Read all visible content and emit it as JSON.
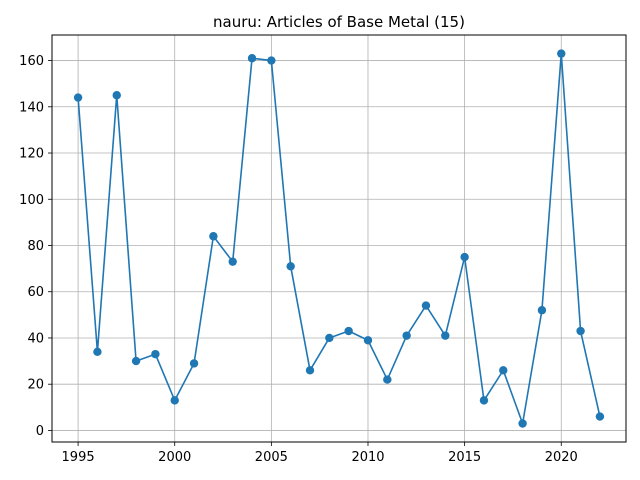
{
  "chart_data": {
    "type": "line",
    "title": "nauru: Articles of Base Metal (15)",
    "xlabel": "",
    "ylabel": "",
    "x": [
      1995,
      1996,
      1997,
      1998,
      1999,
      2000,
      2001,
      2002,
      2003,
      2004,
      2005,
      2006,
      2007,
      2008,
      2009,
      2010,
      2011,
      2012,
      2013,
      2014,
      2015,
      2016,
      2017,
      2018,
      2019,
      2020,
      2021,
      2022
    ],
    "series": [
      {
        "values": [
          144,
          34,
          145,
          30,
          33,
          13,
          29,
          84,
          73,
          161,
          160,
          71,
          26,
          40,
          43,
          39,
          22,
          41,
          54,
          41,
          75,
          13,
          26,
          3,
          52,
          163,
          43,
          6
        ],
        "color": "#1f77b4"
      }
    ],
    "xlim": [
      1993.65,
      2023.35
    ],
    "ylim": [
      -5,
      171.05
    ],
    "xticks": [
      1995,
      2000,
      2005,
      2010,
      2015,
      2020
    ],
    "yticks": [
      0,
      20,
      40,
      60,
      80,
      100,
      120,
      140,
      160
    ],
    "grid": true,
    "marker": "circle"
  }
}
